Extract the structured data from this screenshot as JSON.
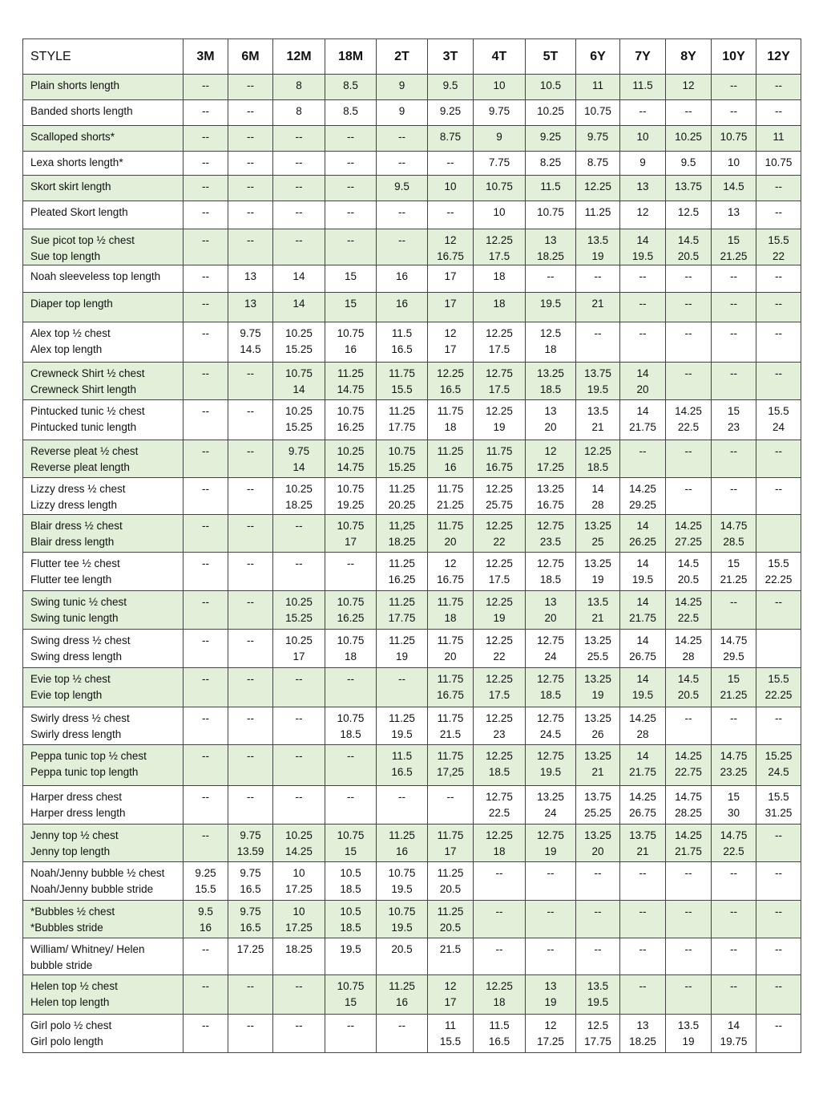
{
  "table": {
    "headers": [
      "STYLE",
      "3M",
      "6M",
      "12M",
      "18M",
      "2T",
      "3T",
      "4T",
      "5T",
      "6Y",
      "7Y",
      "8Y",
      "10Y",
      "12Y"
    ],
    "row_fill_color": "#e2f0d9",
    "rows": [
      {
        "label": "Plain shorts length",
        "cells": [
          "--",
          "--",
          "8",
          "8.5",
          "9",
          "9.5",
          "10",
          "10.5",
          "11",
          "11.5",
          "12",
          "--",
          "--"
        ]
      },
      {
        "label": "Banded shorts length",
        "cells": [
          "--",
          "--",
          "8",
          "8.5",
          "9",
          "9.25",
          "9.75",
          "10.25",
          "10.75",
          "--",
          "--",
          "--",
          "--"
        ]
      },
      {
        "label": "Scalloped shorts*",
        "cells": [
          "--",
          "--",
          "--",
          "--",
          "--",
          "8.75",
          "9",
          "9.25",
          "9.75",
          "10",
          "10.25",
          "10.75",
          "11"
        ]
      },
      {
        "label": "Lexa shorts length*",
        "cells": [
          "--",
          "--",
          "--",
          "--",
          "--",
          "--",
          "7.75",
          "8.25",
          "8.75",
          "9",
          "9.5",
          "10",
          "10.75"
        ]
      },
      {
        "label": "Skort skirt length",
        "cells": [
          "--",
          "--",
          "--",
          "--",
          "9.5",
          "10",
          "10.75",
          "11.5",
          "12.25",
          "13",
          "13.75",
          "14.5",
          "--"
        ]
      },
      {
        "label": "Pleated Skort length",
        "cells": [
          "--",
          "--",
          "--",
          "--",
          "--",
          "--",
          "10",
          "10.75",
          "11.25",
          "12",
          "12.5",
          "13",
          "--"
        ]
      },
      {
        "label": "Sue picot top ½ chest\nSue top length",
        "cells": [
          "--",
          "--",
          "--",
          "--",
          "--",
          "12\n16.75",
          "12.25\n17.5",
          "13\n18.25",
          "13.5\n19",
          "14\n19.5",
          "14.5\n20.5",
          "15\n21.25",
          "15.5\n22"
        ]
      },
      {
        "label": "Noah sleeveless top length",
        "cells": [
          "--",
          "13",
          "14",
          "15",
          "16",
          "17",
          "18",
          "--",
          "--",
          "--",
          "--",
          "--",
          "--"
        ]
      },
      {
        "label": "Diaper top length",
        "cells": [
          "--",
          "13",
          "14",
          "15",
          "16",
          "17",
          "18",
          "19.5",
          "21",
          "--",
          "--",
          "--",
          "--"
        ]
      },
      {
        "label": "Alex top ½ chest\nAlex top length",
        "cells": [
          "--",
          "9.75\n14.5",
          "10.25\n15.25",
          "10.75\n16",
          "11.5\n16.5",
          "12\n17",
          "12.25\n17.5",
          "12.5\n18",
          "--",
          "--",
          "--",
          "--",
          "--"
        ]
      },
      {
        "label": "Crewneck Shirt ½ chest\nCrewneck Shirt length",
        "cells": [
          "--",
          "--",
          "10.75\n14",
          "11.25\n14.75",
          "11.75\n15.5",
          "12.25\n16.5",
          "12.75\n17.5",
          "13.25\n18.5",
          "13.75\n19.5",
          "14\n20",
          "--",
          "--",
          "--"
        ]
      },
      {
        "label": "Pintucked tunic ½ chest\nPintucked tunic length",
        "cells": [
          "--",
          "--",
          "10.25\n15.25",
          "10.75\n16.25",
          "11.25\n17.75",
          "11.75\n18",
          "12.25\n19",
          "13\n20",
          "13.5\n21",
          "14\n21.75",
          "14.25\n22.5",
          "15\n23",
          "15.5\n24"
        ]
      },
      {
        "label": "Reverse pleat ½ chest\nReverse pleat length",
        "cells": [
          "--",
          "--",
          "9.75\n14",
          "10.25\n14.75",
          "10.75\n15.25",
          "11.25\n16",
          "11.75\n16.75",
          "12\n17.25",
          "12.25\n18.5",
          "--",
          "--",
          "--",
          "--"
        ]
      },
      {
        "label": "Lizzy dress ½ chest\nLizzy dress length",
        "cells": [
          "--",
          "--",
          "10.25\n18.25",
          "10.75\n19.25",
          "11.25\n20.25",
          "11.75\n21.25",
          "12.25\n25.75",
          "13.25\n16.75",
          "14\n28",
          "14.25\n29.25",
          "--",
          "--",
          "--"
        ]
      },
      {
        "label": "Blair dress ½ chest\nBlair dress length",
        "cells": [
          "--",
          "--",
          "--",
          "10.75\n17",
          "11,25\n18.25",
          "11.75\n20",
          "12.25\n22",
          "12.75\n23.5",
          "13.25\n25",
          "14\n26.25",
          "14.25\n27.25",
          "14.75\n28.5",
          ""
        ]
      },
      {
        "label": "Flutter tee ½ chest\nFlutter tee length",
        "cells": [
          "--",
          "--",
          "--",
          "--",
          "11.25\n16.25",
          "12\n16.75",
          "12.25\n17.5",
          "12.75\n18.5",
          "13.25\n19",
          "14\n19.5",
          "14.5\n20.5",
          "15\n21.25",
          "15.5\n22.25"
        ]
      },
      {
        "label": "Swing tunic ½ chest\nSwing tunic length",
        "cells": [
          "--",
          "--",
          "10.25\n15.25",
          "10.75\n16.25",
          "11.25\n17.75",
          "11.75\n18",
          "12.25\n19",
          "13\n20",
          "13.5\n21",
          "14\n21.75",
          "14.25\n22.5",
          "--",
          "--"
        ]
      },
      {
        "label": "Swing dress ½ chest\nSwing dress length",
        "cells": [
          "--",
          "--",
          "10.25\n17",
          "10.75\n18",
          "11.25\n19",
          "11.75\n20",
          "12.25\n22",
          "12.75\n24",
          "13.25\n25.5",
          "14\n26.75",
          "14.25\n28",
          "14.75\n29.5",
          ""
        ]
      },
      {
        "label": "Evie top ½ chest\nEvie top length",
        "cells": [
          "--",
          "--",
          "--",
          "--",
          "--",
          "11.75\n16.75",
          "12.25\n17.5",
          "12.75\n18.5",
          "13.25\n19",
          "14\n19.5",
          "14.5\n20.5",
          "15\n21.25",
          "15.5\n22.25"
        ]
      },
      {
        "label": "Swirly dress ½ chest\nSwirly dress length",
        "cells": [
          "--",
          "--",
          "--",
          "10.75\n18.5",
          "11.25\n19.5",
          "11.75\n21.5",
          "12.25\n23",
          "12.75\n24.5",
          "13.25\n26",
          "14.25\n28",
          "--",
          "--",
          "--"
        ]
      },
      {
        "label": "Peppa tunic top ½ chest\nPeppa tunic top length",
        "cells": [
          "--",
          "--",
          "--",
          "--",
          "11.5\n16.5",
          "11.75\n17,25",
          "12.25\n18.5",
          "12.75\n19.5",
          "13.25\n21",
          "14\n21.75",
          "14.25\n22.75",
          "14.75\n23.25",
          "15.25\n24.5"
        ]
      },
      {
        "label": "Harper dress chest\nHarper dress length",
        "cells": [
          "--",
          "--",
          "--",
          "--",
          "--",
          "--",
          "12.75\n22.5",
          "13.25\n24",
          "13.75\n25.25",
          "14.25\n26.75",
          "14.75\n28.25",
          "15\n30",
          "15.5\n31.25"
        ]
      },
      {
        "label": "Jenny top ½ chest\nJenny top length",
        "cells": [
          "--",
          "9.75\n13.59",
          "10.25\n14.25",
          "10.75\n15",
          "11.25\n16",
          "11.75\n17",
          "12.25\n18",
          "12.75\n19",
          "13.25\n20",
          "13.75\n21",
          "14.25\n21.75",
          "14.75\n22.5",
          "--"
        ]
      },
      {
        "label": "Noah/Jenny bubble ½ chest\nNoah/Jenny bubble stride",
        "cells": [
          "9.25\n15.5",
          "9.75\n16.5",
          "10\n17.25",
          "10.5\n18.5",
          "10.75\n19.5",
          "11.25\n20.5",
          "--",
          "--",
          "--",
          "--",
          "--",
          "--",
          "--"
        ]
      },
      {
        "label": "*Bubbles ½ chest\n*Bubbles stride",
        "cells": [
          "9.5\n16",
          "9.75\n16.5",
          "10\n17.25",
          "10.5\n18.5",
          "10.75\n19.5",
          "11.25\n20.5",
          "--",
          "--",
          "--",
          "--",
          "--",
          "--",
          "--"
        ]
      },
      {
        "label": "William/ Whitney/ Helen\nbubble stride",
        "cells": [
          "--",
          "17.25",
          "18.25",
          "19.5",
          "20.5",
          "21.5",
          "--",
          "--",
          "--",
          "--",
          "--",
          "--",
          "--"
        ]
      },
      {
        "label": "Helen top ½ chest\nHelen top length",
        "cells": [
          "--",
          "--",
          "--",
          "10.75\n15",
          "11.25\n16",
          "12\n17",
          "12.25\n18",
          "13\n19",
          "13.5\n19.5",
          "--",
          "--",
          "--",
          "--"
        ]
      },
      {
        "label": "Girl polo ½ chest\nGirl polo length",
        "cells": [
          "--",
          "--",
          "--",
          "--",
          "--",
          "11\n15.5",
          "11.5\n16.5",
          "12\n17.25",
          "12.5\n17.75",
          "13\n18.25",
          "13.5\n19",
          "14\n19.75",
          "--"
        ]
      }
    ]
  }
}
